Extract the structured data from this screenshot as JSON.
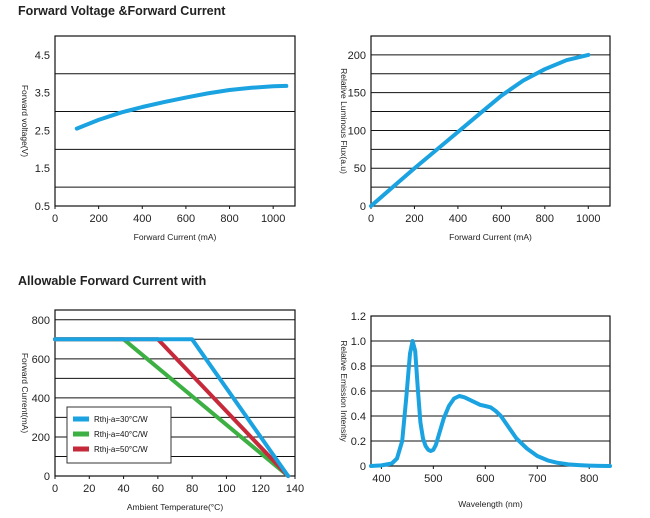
{
  "headings": {
    "top": "Forward Voltage &Forward Current",
    "bottom": "Allowable Forward Current with"
  },
  "chart_data": [
    {
      "id": "vf",
      "type": "line",
      "title": "",
      "xlabel": "Forward Current (mA)",
      "ylabel": "Forward voltage(V)",
      "xlim": [
        0,
        1100
      ],
      "ylim": [
        0.5,
        5
      ],
      "xticks": [
        0,
        200,
        400,
        600,
        800,
        1000
      ],
      "xtick_labels": [
        "0",
        "200",
        "400",
        "600",
        "800",
        "1000"
      ],
      "yticks": [
        0.5,
        1.5,
        2.5,
        3.5,
        4.5
      ],
      "ytick_labels": [
        "0.5",
        "1.5",
        "2.5",
        "3.5",
        "4.5"
      ],
      "ygrid": [
        1,
        2,
        3,
        4
      ],
      "series": [
        {
          "color": "#1aa3e0",
          "x": [
            100,
            200,
            300,
            400,
            500,
            600,
            700,
            800,
            900,
            1000,
            1060
          ],
          "y": [
            2.55,
            2.78,
            2.97,
            3.12,
            3.25,
            3.37,
            3.48,
            3.57,
            3.63,
            3.67,
            3.68
          ]
        }
      ]
    },
    {
      "id": "flux",
      "type": "line",
      "title": "",
      "xlabel": "Forward Current (mA)",
      "ylabel": "Relative Luminous Flux(a.u)",
      "xlim": [
        0,
        1100
      ],
      "ylim": [
        0,
        225
      ],
      "xticks": [
        0,
        200,
        400,
        600,
        800,
        1000
      ],
      "xtick_labels": [
        "0",
        "200",
        "400",
        "600",
        "800",
        "1000"
      ],
      "yticks": [
        0,
        50,
        100,
        150,
        200
      ],
      "ytick_labels": [
        "0",
        "50",
        "100",
        "150",
        "200"
      ],
      "ygrid": [
        25,
        50,
        75,
        100,
        125,
        150,
        175,
        200
      ],
      "series": [
        {
          "color": "#1aa3e0",
          "x": [
            0,
            100,
            200,
            300,
            400,
            500,
            600,
            700,
            800,
            900,
            1000
          ],
          "y": [
            0,
            25,
            50,
            74,
            98,
            122,
            146,
            166,
            181,
            193,
            200
          ]
        }
      ]
    },
    {
      "id": "derating",
      "type": "line",
      "title": "",
      "xlabel": "Ambient Temperature(°C)",
      "ylabel": "Forward Current(mA)",
      "xlim": [
        0,
        140
      ],
      "ylim": [
        0,
        850
      ],
      "xticks": [
        0,
        20,
        40,
        60,
        80,
        100,
        120,
        140
      ],
      "xtick_labels": [
        "0",
        "20",
        "40",
        "60",
        "80",
        "100",
        "120",
        "140"
      ],
      "yticks": [
        0,
        200,
        400,
        600,
        800
      ],
      "ytick_labels": [
        "0",
        "200",
        "400",
        "600",
        "800"
      ],
      "ygrid": [
        100,
        200,
        300,
        400,
        500,
        600,
        700,
        800
      ],
      "legend": "bottom-left",
      "series": [
        {
          "name": "Rthj-a=30°C/W",
          "color": "#1aa3e0",
          "x": [
            0,
            80,
            136
          ],
          "y": [
            700,
            700,
            0
          ]
        },
        {
          "name": "Rthj-a=40°C/W",
          "color": "#3cb043",
          "x": [
            0,
            40,
            136
          ],
          "y": [
            700,
            700,
            0
          ]
        },
        {
          "name": "Rthj-a=50°C/W",
          "color": "#c62a3a",
          "x": [
            0,
            60,
            136
          ],
          "y": [
            700,
            700,
            0
          ]
        }
      ],
      "draw_order": [
        1,
        2,
        0
      ]
    },
    {
      "id": "spectrum",
      "type": "line",
      "title": "",
      "xlabel": "Wavelength (nm)",
      "ylabel": "Relative Emission Intensity",
      "xlim": [
        380,
        840
      ],
      "ylim": [
        0,
        1.2
      ],
      "xticks": [
        400,
        500,
        600,
        700,
        800
      ],
      "xtick_labels": [
        "400",
        "500",
        "600",
        "700",
        "800"
      ],
      "yticks": [
        0,
        0.2,
        0.4,
        0.6,
        0.8,
        1.0,
        1.2
      ],
      "ytick_labels": [
        "0",
        "0.2",
        "0.4",
        "0.6",
        "0.8",
        "1.0",
        "1.2"
      ],
      "ygrid": [
        0.2,
        0.4,
        0.6,
        0.8,
        1.0,
        1.2
      ],
      "series": [
        {
          "color": "#1aa3e0",
          "x": [
            380,
            400,
            420,
            430,
            440,
            448,
            455,
            460,
            465,
            470,
            475,
            480,
            485,
            490,
            495,
            500,
            505,
            510,
            520,
            530,
            540,
            550,
            560,
            570,
            580,
            590,
            600,
            610,
            620,
            630,
            640,
            650,
            660,
            680,
            700,
            720,
            740,
            760,
            780,
            800,
            820,
            840
          ],
          "y": [
            0,
            0.005,
            0.02,
            0.06,
            0.2,
            0.55,
            0.9,
            1.0,
            0.92,
            0.62,
            0.35,
            0.22,
            0.16,
            0.13,
            0.12,
            0.13,
            0.17,
            0.24,
            0.38,
            0.48,
            0.54,
            0.56,
            0.55,
            0.53,
            0.51,
            0.49,
            0.48,
            0.47,
            0.44,
            0.4,
            0.34,
            0.28,
            0.22,
            0.14,
            0.08,
            0.045,
            0.025,
            0.013,
            0.007,
            0.003,
            0.001,
            0
          ]
        }
      ]
    }
  ]
}
